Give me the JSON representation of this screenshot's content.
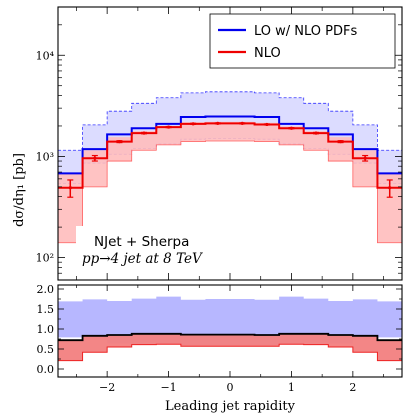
{
  "chart_data": {
    "type": "line",
    "x_edges": [
      -2.8,
      -2.4,
      -2.0,
      -1.6,
      -1.2,
      -0.8,
      -0.4,
      0.0,
      0.4,
      0.8,
      1.2,
      1.6,
      2.0,
      2.4,
      2.8
    ],
    "xlabel": "Leading jet rapidity",
    "xlim": [
      -2.8,
      2.8
    ],
    "x_ticks": [
      -2,
      -1,
      0,
      1,
      2
    ],
    "x_tick_labels": [
      "−2",
      "−1",
      "0",
      "1",
      "2"
    ],
    "legend": {
      "position": "top-right"
    },
    "annotation_lines": [
      "NJet + Sherpa",
      "pp→4 jet at 8 TeV"
    ],
    "top": {
      "ylabel": "dσ/dη₁ [pb]",
      "yscale": "log",
      "ylim": [
        60,
        30000
      ],
      "y_ticks": [
        100,
        1000,
        10000
      ],
      "y_tick_labels": [
        "10²",
        "10³",
        "10⁴"
      ],
      "series": [
        {
          "name": "LO w/ NLO PDFs",
          "color": "#0000ee",
          "values": [
            680,
            1180,
            1650,
            1900,
            2100,
            2450,
            2480,
            2480,
            2450,
            2100,
            1900,
            1650,
            1180,
            680
          ],
          "band_low": [
            540,
            860,
            1050,
            1200,
            1330,
            1480,
            1500,
            1500,
            1480,
            1330,
            1200,
            1050,
            860,
            540
          ],
          "band_high": [
            1150,
            2050,
            2800,
            3350,
            3800,
            4250,
            4350,
            4350,
            4250,
            3800,
            3350,
            2800,
            2050,
            1150
          ],
          "band_color": "#dcdcff"
        },
        {
          "name": "NLO",
          "color": "#ee0000",
          "values": [
            490,
            960,
            1400,
            1700,
            1950,
            2100,
            2120,
            2120,
            2070,
            1900,
            1700,
            1400,
            960,
            490
          ],
          "errors": [
            95,
            60,
            30,
            25,
            25,
            25,
            25,
            25,
            25,
            25,
            25,
            30,
            60,
            95
          ],
          "band_low": [
            140,
            500,
            900,
            1150,
            1300,
            1400,
            1420,
            1420,
            1400,
            1300,
            1150,
            900,
            500,
            140
          ],
          "band_high": [
            680,
            1150,
            1550,
            1780,
            2000,
            2180,
            2200,
            2200,
            2150,
            1980,
            1780,
            1550,
            1150,
            680
          ],
          "band_color": "#ffbcbc"
        }
      ]
    },
    "bottom": {
      "ylim": [
        -0.2,
        2.1
      ],
      "y_ticks": [
        0.0,
        0.5,
        1.0,
        1.5,
        2.0
      ],
      "y_tick_labels": [
        "0.0",
        "0.5",
        "1.0",
        "1.5",
        "2.0"
      ],
      "ratio_line": [
        0.72,
        0.83,
        0.85,
        0.88,
        0.88,
        0.86,
        0.86,
        0.86,
        0.85,
        0.88,
        0.88,
        0.85,
        0.83,
        0.72
      ],
      "blue_band_low": [
        0.79,
        0.73,
        0.64,
        0.63,
        0.63,
        0.6,
        0.6,
        0.6,
        0.6,
        0.63,
        0.63,
        0.64,
        0.73,
        0.79
      ],
      "blue_band_high": [
        1.69,
        1.74,
        1.7,
        1.76,
        1.81,
        1.73,
        1.75,
        1.75,
        1.73,
        1.81,
        1.76,
        1.7,
        1.74,
        1.69
      ],
      "red_band_low": [
        0.21,
        0.42,
        0.55,
        0.61,
        0.62,
        0.57,
        0.57,
        0.57,
        0.57,
        0.62,
        0.61,
        0.55,
        0.42,
        0.21
      ],
      "red_band_high": [
        0.72,
        0.83,
        0.85,
        0.88,
        0.88,
        0.86,
        0.86,
        0.86,
        0.85,
        0.88,
        0.88,
        0.85,
        0.83,
        0.72
      ],
      "blue_band_color": "#aaaaff",
      "red_band_color": "#f28080"
    }
  }
}
